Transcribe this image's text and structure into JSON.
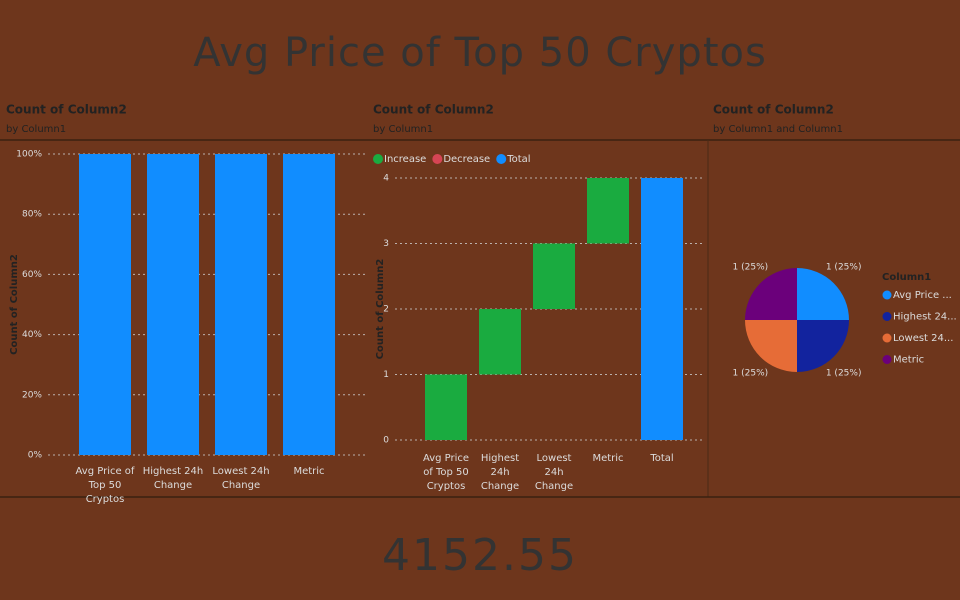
{
  "header": {
    "title": "Avg Price of Top 50 Cryptos"
  },
  "chart_data": [
    {
      "type": "bar",
      "title": "Count of Column2",
      "subtitle": "by Column1",
      "y_label": "Count of Column2",
      "categories": [
        "Avg Price of Top 50 Cryptos",
        "Highest 24h Change",
        "Lowest 24h Change",
        "Metric"
      ],
      "values": [
        100,
        100,
        100,
        100
      ],
      "color": "#118dff",
      "ylim": [
        0,
        100
      ],
      "yticks": [
        {
          "value": 0,
          "label": "0%"
        },
        {
          "value": 20,
          "label": "20%"
        },
        {
          "value": 40,
          "label": "40%"
        },
        {
          "value": 60,
          "label": "60%"
        },
        {
          "value": 80,
          "label": "80%"
        },
        {
          "value": 100,
          "label": "100%"
        }
      ],
      "grid": true
    },
    {
      "type": "waterfall",
      "title": "Count of Column2",
      "subtitle": "by Column1",
      "y_label": "Count of Column2",
      "categories": [
        "Avg Price of Top 50 Cryptos",
        "Highest 24h Change",
        "Lowest 24h Change",
        "Metric",
        "Total"
      ],
      "values": [
        1,
        1,
        1,
        1,
        4
      ],
      "is_total": [
        false,
        false,
        false,
        false,
        true
      ],
      "legend": [
        {
          "name": "Increase",
          "color": "#1aab40"
        },
        {
          "name": "Decrease",
          "color": "#d64554"
        },
        {
          "name": "Total",
          "color": "#118dff"
        }
      ],
      "ylim": [
        0,
        4
      ],
      "yticks": [
        0,
        1,
        2,
        3,
        4
      ],
      "grid": true
    },
    {
      "type": "pie",
      "title": "Count of Column2",
      "subtitle": "by Column1 and Column1",
      "legend_title": "Column1",
      "categories": [
        "Avg Price ...",
        "Highest 24...",
        "Lowest 24...",
        "Metric"
      ],
      "values": [
        1,
        1,
        1,
        1
      ],
      "value_labels": [
        "1 (25%)",
        "1 (25%)",
        "1 (25%)",
        "1 (25%)"
      ],
      "colors": [
        "#118dff",
        "#12239e",
        "#e66c37",
        "#6b007b"
      ]
    }
  ],
  "card": {
    "value": 4152.55
  }
}
